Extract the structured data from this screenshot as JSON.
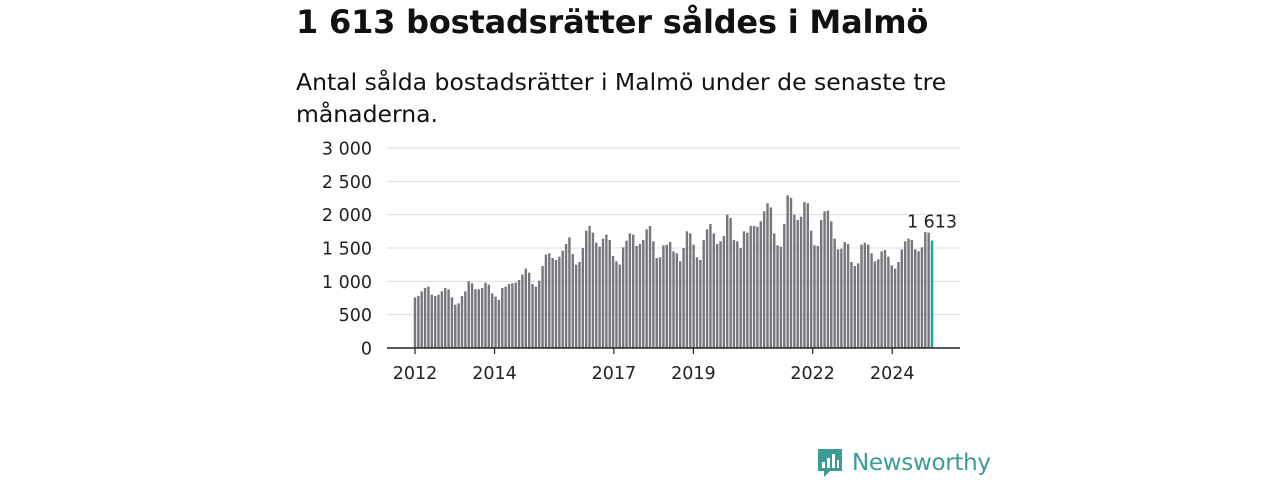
{
  "title": "1 613 bostadsrätter såldes i Malmö",
  "subtitle": "Antal sålda bostadsrätter i Malmö under de senaste tre månaderna.",
  "brand": {
    "name": "Newsworthy",
    "icon": "newsworthy-logo-icon",
    "color": "#3a9c95"
  },
  "colors": {
    "bar": "#77767c",
    "highlight": "#1aa59b",
    "grid": "#dddddd",
    "axis": "#222222"
  },
  "chart_data": {
    "type": "bar",
    "title": "1 613 bostadsrätter såldes i Malmö",
    "subtitle": "Antal sålda bostadsrätter i Malmö under de senaste tre månaderna.",
    "x_start": "2012-01",
    "x_end": "2025-01",
    "x_ticks": [
      {
        "label": "2012",
        "date": "2012-01"
      },
      {
        "label": "2014",
        "date": "2014-01"
      },
      {
        "label": "2017",
        "date": "2017-01"
      },
      {
        "label": "2019",
        "date": "2019-01"
      },
      {
        "label": "2022",
        "date": "2022-01"
      },
      {
        "label": "2024",
        "date": "2024-01"
      }
    ],
    "y_ticks": [
      {
        "value": 0,
        "label": "0"
      },
      {
        "value": 500,
        "label": "500"
      },
      {
        "value": 1000,
        "label": "1 000"
      },
      {
        "value": 1500,
        "label": "1 500"
      },
      {
        "value": 2000,
        "label": "2 000"
      },
      {
        "value": 2500,
        "label": "2 500"
      },
      {
        "value": 3000,
        "label": "3 000"
      }
    ],
    "ylim": [
      0,
      3000
    ],
    "grid": true,
    "values": [
      760,
      780,
      850,
      900,
      920,
      800,
      780,
      800,
      850,
      900,
      880,
      760,
      650,
      670,
      780,
      850,
      1000,
      970,
      880,
      880,
      900,
      980,
      950,
      820,
      770,
      720,
      900,
      920,
      960,
      970,
      980,
      1020,
      1100,
      1190,
      1130,
      960,
      920,
      1010,
      1230,
      1400,
      1420,
      1350,
      1320,
      1370,
      1460,
      1560,
      1660,
      1410,
      1250,
      1290,
      1500,
      1760,
      1830,
      1730,
      1580,
      1520,
      1640,
      1700,
      1620,
      1380,
      1300,
      1250,
      1510,
      1610,
      1720,
      1700,
      1530,
      1560,
      1620,
      1780,
      1830,
      1600,
      1350,
      1360,
      1540,
      1550,
      1590,
      1450,
      1420,
      1300,
      1500,
      1750,
      1720,
      1550,
      1360,
      1320,
      1620,
      1780,
      1860,
      1720,
      1560,
      1600,
      1680,
      2000,
      1950,
      1620,
      1600,
      1500,
      1750,
      1730,
      1830,
      1830,
      1820,
      1900,
      2050,
      2170,
      2110,
      1720,
      1540,
      1520,
      1860,
      2290,
      2250,
      2000,
      1920,
      1970,
      2190,
      2170,
      1760,
      1540,
      1530,
      1920,
      2050,
      2060,
      1900,
      1640,
      1480,
      1490,
      1590,
      1560,
      1290,
      1230,
      1270,
      1550,
      1580,
      1550,
      1420,
      1300,
      1330,
      1450,
      1470,
      1370,
      1240,
      1190,
      1290,
      1480,
      1600,
      1640,
      1620,
      1480,
      1450,
      1510,
      1740,
      1730,
      1613
    ],
    "highlight_label": "1 613",
    "highlight_value": 1613
  }
}
